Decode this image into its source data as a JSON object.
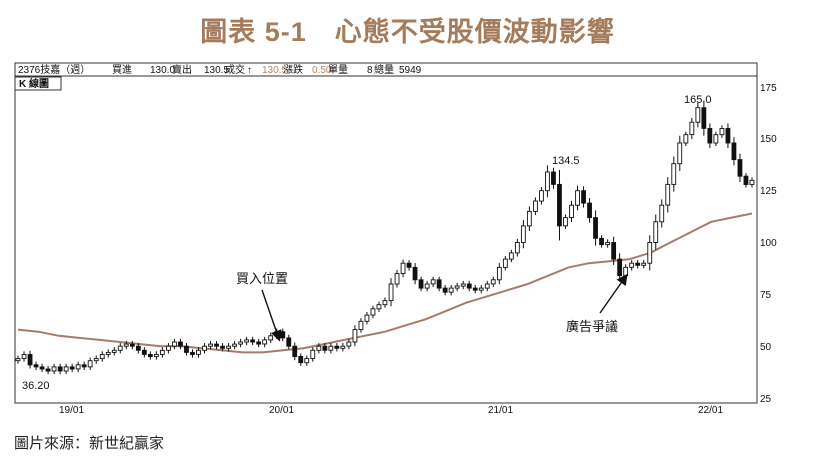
{
  "title": "圖表 5-1　心態不受股價波動影響",
  "source": "圖片來源：新世紀贏家",
  "header": {
    "stock": "2376技嘉（週）",
    "buy_label": "買進",
    "buy_value": "130.0",
    "sell_label": "賣出",
    "sell_value": "130.5",
    "trade_label": "成交",
    "trade_mark": "↑",
    "change_value": "130.5",
    "change_label": "漲跌",
    "volume_value": "0.50",
    "volume_label": "單量",
    "total_value": "8",
    "total_label": "總量",
    "total_extra": "5949",
    "kline_label": "K 線圖"
  },
  "chart_data": {
    "type": "candlestick",
    "x_ticks": [
      "19/01",
      "20/01",
      "21/01",
      "22/01"
    ],
    "y_ticks": [
      "175",
      "150",
      "125",
      "100",
      "75",
      "50",
      "25"
    ],
    "ylim": [
      25,
      175
    ],
    "annotations": {
      "low": "36.20",
      "peak1": "134.5",
      "peak2": "165.0",
      "buy": "買入位置",
      "ad": "廣告爭議"
    },
    "series": [
      {
        "values": [
          44,
          46,
          41,
          40,
          39,
          38,
          40,
          38,
          40,
          39,
          41,
          40,
          43,
          44,
          46,
          47,
          48,
          50,
          51,
          50,
          48,
          46,
          45,
          46,
          48,
          50,
          52,
          50,
          47,
          46,
          48,
          50,
          51,
          50,
          49,
          50,
          51,
          52,
          53,
          52,
          51,
          53,
          55,
          57,
          54,
          50,
          45,
          42,
          44,
          48,
          50,
          48,
          50,
          49,
          50,
          52,
          58,
          62,
          65,
          68,
          70,
          72,
          80,
          85,
          90,
          88,
          82,
          78,
          80,
          82,
          78,
          76,
          78,
          79,
          80,
          78,
          77,
          78,
          80,
          82,
          88,
          92,
          95,
          100,
          108,
          115,
          120,
          125,
          134,
          128,
          108,
          112,
          118,
          125,
          119,
          112,
          102,
          99,
          100,
          92,
          84,
          88,
          90,
          89,
          90,
          100,
          110,
          118,
          128,
          138,
          148,
          152,
          158,
          165,
          155,
          148,
          152,
          155,
          148,
          140,
          132,
          128,
          130
        ]
      },
      {
        "values": [
          58,
          57,
          55,
          54,
          53,
          52,
          51,
          50,
          50,
          49,
          48,
          47,
          47,
          48,
          49,
          51,
          53,
          55,
          57,
          60,
          63,
          67,
          71,
          74,
          77,
          80,
          84,
          88,
          90,
          91,
          92,
          95,
          100,
          105,
          110,
          112,
          114
        ]
      }
    ]
  }
}
